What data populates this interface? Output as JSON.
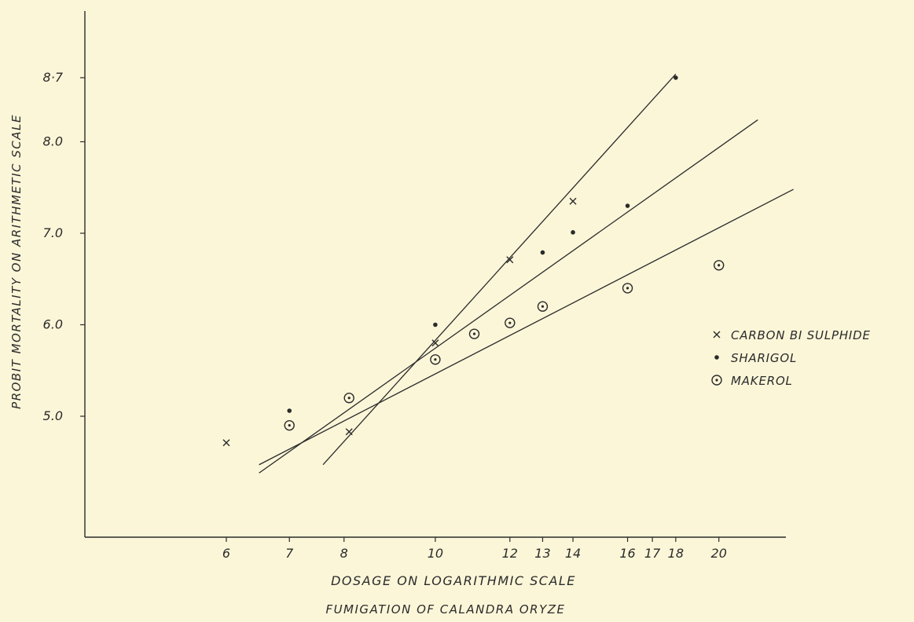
{
  "chart_data": {
    "type": "scatter",
    "title": "FUMIGATION OF CALANDRA ORYZE",
    "xlabel": "DOSAGE ON LOGARITHMIC SCALE",
    "ylabel": "PROBIT MORTALITY ON ARITHMETIC SCALE",
    "x_scale": "log",
    "x_ticks": [
      6,
      7,
      8,
      10,
      12,
      13,
      14,
      16,
      17,
      18,
      20
    ],
    "x_tick_labels": [
      "6",
      "7",
      "8",
      "10",
      "12",
      "13",
      "14",
      "16",
      "17",
      "18",
      "20"
    ],
    "y_ticks": [
      5.0,
      6.0,
      7.0,
      8.0,
      8.7
    ],
    "y_tick_labels": [
      "5.0",
      "6.0",
      "7.0",
      "8.0",
      "8·7"
    ],
    "xlim": [
      5,
      25
    ],
    "ylim": [
      3.7,
      9.4
    ],
    "grid": false,
    "legend_position": "right",
    "series": [
      {
        "name": "CARBON BI SULPHIDE",
        "marker": "cross",
        "points": [
          {
            "x": 6.0,
            "y": 4.71
          },
          {
            "x": 8.1,
            "y": 4.83
          },
          {
            "x": 10.0,
            "y": 5.8
          },
          {
            "x": 12.0,
            "y": 6.71
          },
          {
            "x": 14.0,
            "y": 7.35
          }
        ],
        "fit_line": {
          "x": [
            7.6,
            18.0
          ],
          "y": [
            4.47,
            8.74
          ]
        }
      },
      {
        "name": "SHARIGOL",
        "marker": "dot",
        "points": [
          {
            "x": 7.0,
            "y": 5.06
          },
          {
            "x": 10.0,
            "y": 6.0
          },
          {
            "x": 13.0,
            "y": 6.79
          },
          {
            "x": 14.0,
            "y": 7.01
          },
          {
            "x": 16.0,
            "y": 7.3
          },
          {
            "x": 18.0,
            "y": 8.7
          }
        ],
        "fit_line": {
          "x": [
            6.5,
            22.0
          ],
          "y": [
            4.38,
            8.24
          ]
        }
      },
      {
        "name": "MAKEROL",
        "marker": "circle-dot",
        "points": [
          {
            "x": 7.0,
            "y": 4.9
          },
          {
            "x": 8.1,
            "y": 5.2
          },
          {
            "x": 10.0,
            "y": 5.62
          },
          {
            "x": 11.0,
            "y": 5.9
          },
          {
            "x": 12.0,
            "y": 6.02
          },
          {
            "x": 13.0,
            "y": 6.2
          },
          {
            "x": 16.0,
            "y": 6.4
          },
          {
            "x": 20.0,
            "y": 6.65
          }
        ],
        "fit_line": {
          "x": [
            6.5,
            24.0
          ],
          "y": [
            4.47,
            7.48
          ]
        }
      }
    ]
  }
}
